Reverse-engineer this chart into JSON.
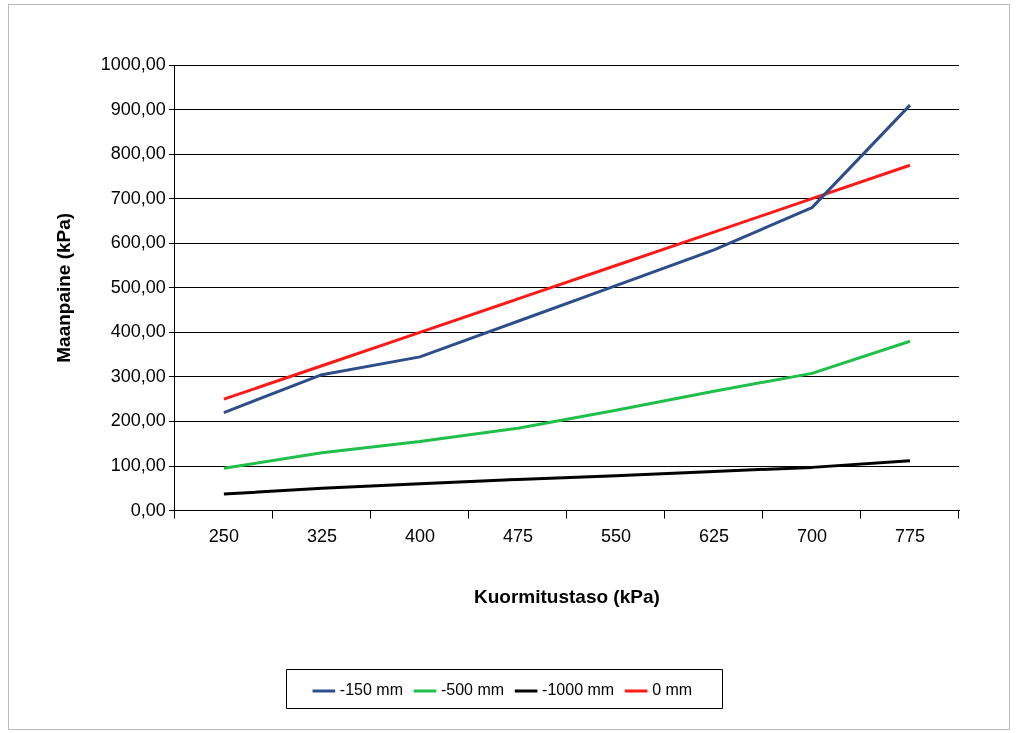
{
  "chart_data": {
    "type": "line",
    "xlabel": "Kuormitustaso (kPa)",
    "ylabel": "Maanpaine (kPa)",
    "categories": [
      "250",
      "325",
      "400",
      "475",
      "550",
      "625",
      "700",
      "775"
    ],
    "series": [
      {
        "name": "-150 mm",
        "color": "#2e4e8a",
        "values": [
          220,
          305,
          345,
          425,
          505,
          585,
          680,
          910
        ]
      },
      {
        "name": "-500 mm",
        "color": "#1fbf4a",
        "values": [
          95,
          130,
          155,
          185,
          225,
          268,
          308,
          380
        ]
      },
      {
        "name": "-1000 mm",
        "color": "#000000",
        "values": [
          37,
          50,
          60,
          70,
          78,
          88,
          97,
          112
        ]
      },
      {
        "name": "0 mm",
        "color": "#ff1a1a",
        "values": [
          250,
          325,
          400,
          475,
          550,
          625,
          700,
          775
        ]
      }
    ],
    "ylim": [
      0,
      1000
    ],
    "yticks": [
      {
        "value": 0,
        "label": "0,00"
      },
      {
        "value": 100,
        "label": "100,00"
      },
      {
        "value": 200,
        "label": "200,00"
      },
      {
        "value": 300,
        "label": "300,00"
      },
      {
        "value": 400,
        "label": "400,00"
      },
      {
        "value": 500,
        "label": "500,00"
      },
      {
        "value": 600,
        "label": "600,00"
      },
      {
        "value": 700,
        "label": "700,00"
      },
      {
        "value": 800,
        "label": "800,00"
      },
      {
        "value": 900,
        "label": "900,00"
      },
      {
        "value": 1000,
        "label": "1000,00"
      }
    ],
    "grid": "y",
    "legend": "bottom",
    "marker": "none",
    "line_style": "solid"
  }
}
